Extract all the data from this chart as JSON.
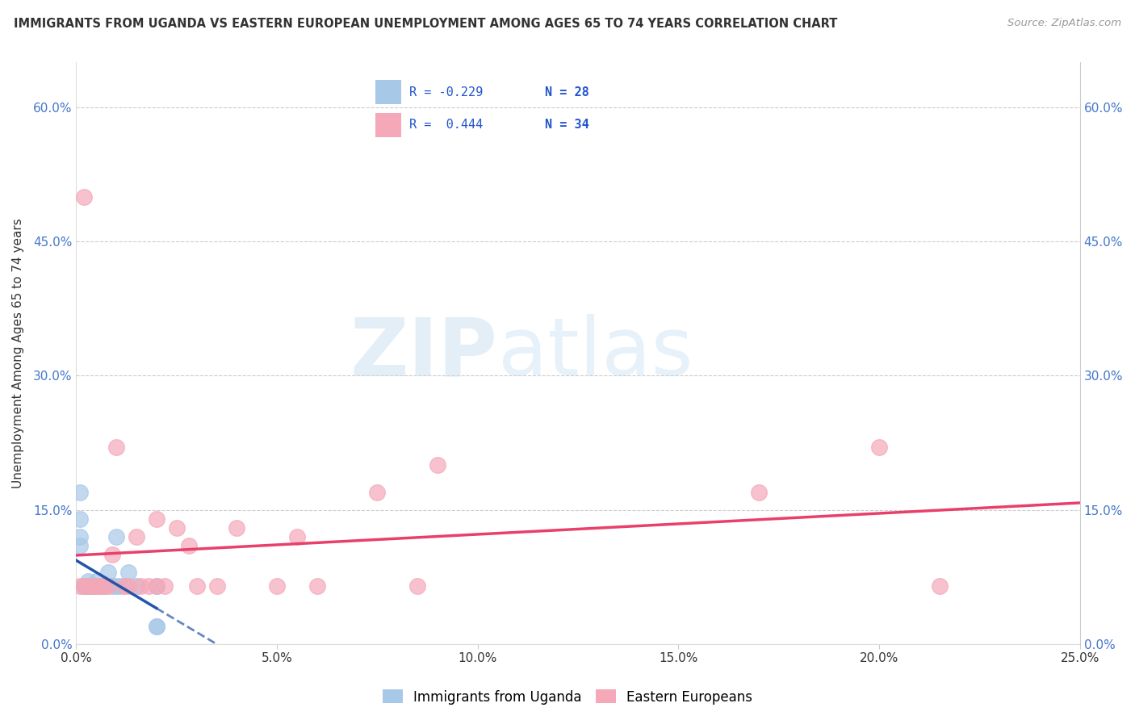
{
  "title": "IMMIGRANTS FROM UGANDA VS EASTERN EUROPEAN UNEMPLOYMENT AMONG AGES 65 TO 74 YEARS CORRELATION CHART",
  "source": "Source: ZipAtlas.com",
  "ylabel": "Unemployment Among Ages 65 to 74 years",
  "xlim": [
    0,
    0.25
  ],
  "ylim": [
    0,
    0.65
  ],
  "xticks": [
    0.0,
    0.05,
    0.1,
    0.15,
    0.2,
    0.25
  ],
  "xtick_labels": [
    "0.0%",
    "5.0%",
    "10.0%",
    "15.0%",
    "20.0%",
    "25.0%"
  ],
  "yticks": [
    0.0,
    0.15,
    0.3,
    0.45,
    0.6
  ],
  "ytick_labels": [
    "0.0%",
    "15.0%",
    "30.0%",
    "45.0%",
    "60.0%"
  ],
  "r_uganda": -0.229,
  "n_uganda": 28,
  "r_eastern": 0.444,
  "n_eastern": 34,
  "legend_labels": [
    "Immigrants from Uganda",
    "Eastern Europeans"
  ],
  "blue_color": "#a8c8e8",
  "pink_color": "#f4a8b8",
  "blue_line_color": "#2255aa",
  "pink_line_color": "#e8406a",
  "watermark_zip": "ZIP",
  "watermark_atlas": "atlas",
  "uganda_x": [
    0.001,
    0.001,
    0.001,
    0.001,
    0.002,
    0.002,
    0.002,
    0.003,
    0.003,
    0.003,
    0.003,
    0.004,
    0.004,
    0.004,
    0.005,
    0.005,
    0.006,
    0.007,
    0.008,
    0.009,
    0.01,
    0.01,
    0.011,
    0.013,
    0.015,
    0.02,
    0.02,
    0.02
  ],
  "uganda_y": [
    0.17,
    0.14,
    0.12,
    0.11,
    0.065,
    0.065,
    0.065,
    0.065,
    0.065,
    0.065,
    0.07,
    0.065,
    0.065,
    0.065,
    0.07,
    0.065,
    0.065,
    0.065,
    0.08,
    0.065,
    0.065,
    0.12,
    0.065,
    0.08,
    0.065,
    0.065,
    0.02,
    0.02
  ],
  "eastern_x": [
    0.001,
    0.002,
    0.002,
    0.003,
    0.004,
    0.005,
    0.005,
    0.006,
    0.007,
    0.008,
    0.009,
    0.01,
    0.012,
    0.013,
    0.015,
    0.016,
    0.018,
    0.02,
    0.02,
    0.022,
    0.025,
    0.028,
    0.03,
    0.035,
    0.04,
    0.05,
    0.055,
    0.06,
    0.075,
    0.085,
    0.09,
    0.17,
    0.2,
    0.215
  ],
  "eastern_y": [
    0.065,
    0.065,
    0.5,
    0.065,
    0.065,
    0.065,
    0.065,
    0.065,
    0.065,
    0.065,
    0.1,
    0.22,
    0.065,
    0.065,
    0.12,
    0.065,
    0.065,
    0.065,
    0.14,
    0.065,
    0.13,
    0.11,
    0.065,
    0.065,
    0.13,
    0.065,
    0.12,
    0.065,
    0.17,
    0.065,
    0.2,
    0.17,
    0.22,
    0.065
  ]
}
